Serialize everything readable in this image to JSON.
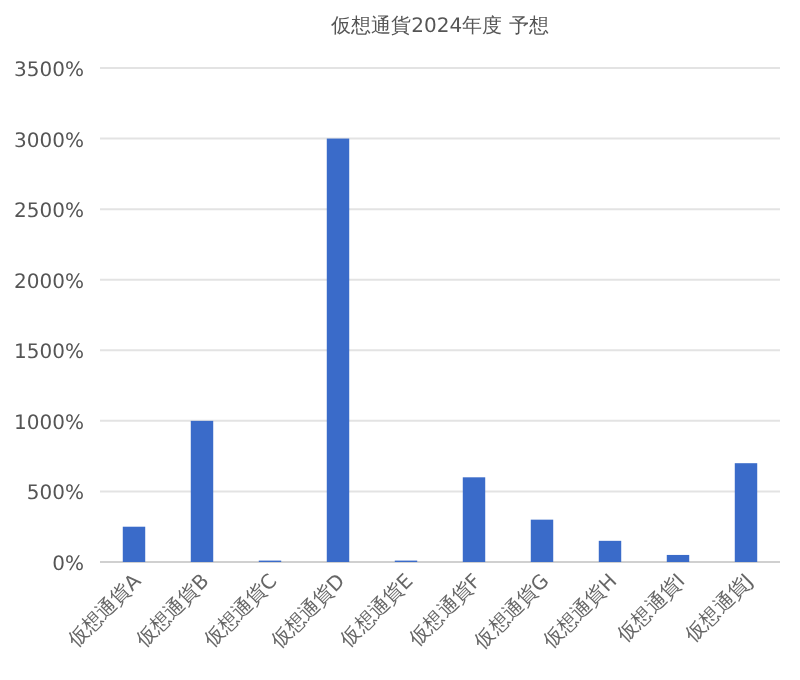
{
  "chart_data": {
    "type": "bar",
    "title": "仮想通貨2024年度 予想",
    "categories": [
      "仮想通貨A",
      "仮想通貨B",
      "仮想通貨C",
      "仮想通貨D",
      "仮想通貨E",
      "仮想通貨F",
      "仮想通貨G",
      "仮想通貨H",
      "仮想通貨I",
      "仮想通貨J"
    ],
    "values": [
      250,
      1000,
      10,
      3000,
      10,
      600,
      300,
      150,
      50,
      700
    ],
    "color": "#3a6bc9",
    "ylim": [
      0,
      3500
    ],
    "yticks": [
      {
        "value": 0,
        "label": "0%"
      },
      {
        "value": 500,
        "label": "500%"
      },
      {
        "value": 1000,
        "label": "1000%"
      },
      {
        "value": 1500,
        "label": "1500%"
      },
      {
        "value": 2000,
        "label": "2000%"
      },
      {
        "value": 2500,
        "label": "2500%"
      },
      {
        "value": 3000,
        "label": "3000%"
      },
      {
        "value": 3500,
        "label": "3500%"
      }
    ],
    "grid": "y"
  }
}
